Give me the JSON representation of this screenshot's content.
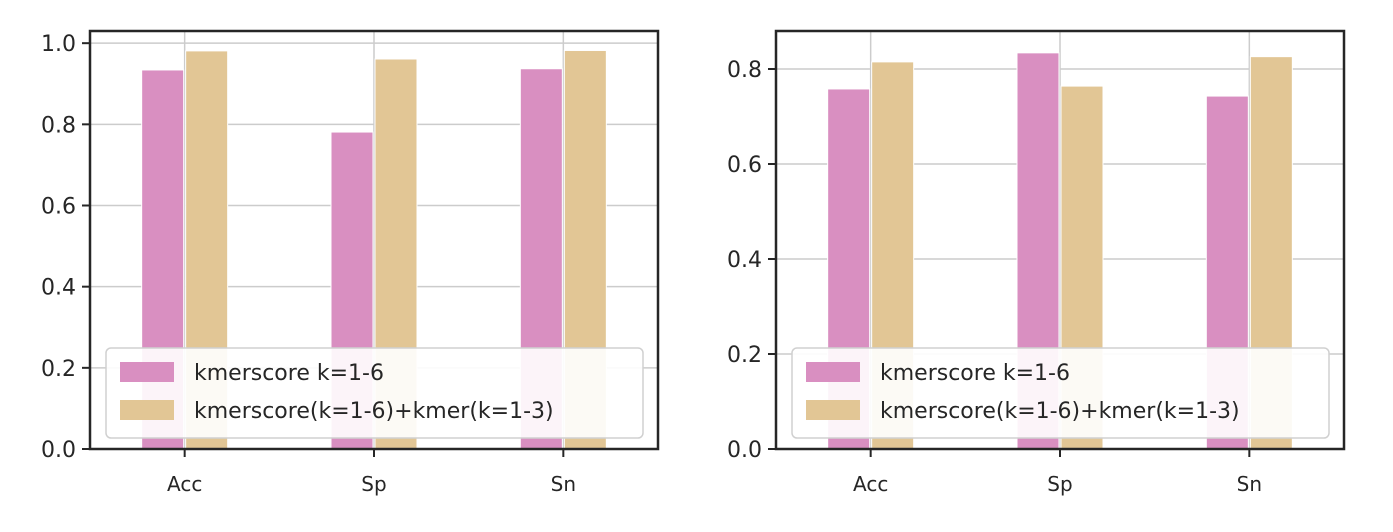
{
  "chart_data": [
    {
      "type": "bar",
      "title": "",
      "xlabel": "",
      "ylabel": "",
      "categories": [
        "Acc",
        "Sp",
        "Sn"
      ],
      "series": [
        {
          "name": "kmerscore k=1-6",
          "values": [
            0.934,
            0.781,
            0.937
          ],
          "color": "#d98fc1"
        },
        {
          "name": "kmerscore(k=1-6)+kmer(k=1-3)",
          "values": [
            0.981,
            0.961,
            0.982
          ],
          "color": "#e2c695"
        }
      ],
      "ylim": [
        0,
        1.03
      ],
      "yticks": [
        "0.0",
        "0.2",
        "0.4",
        "0.6",
        "0.8",
        "1.0"
      ],
      "ytick_values": [
        0.0,
        0.2,
        0.4,
        0.6,
        0.8,
        1.0
      ],
      "grid": true,
      "legend_position": "lower-left"
    },
    {
      "type": "bar",
      "title": "",
      "xlabel": "",
      "ylabel": "",
      "categories": [
        "Acc",
        "Sp",
        "Sn"
      ],
      "series": [
        {
          "name": "kmerscore k=1-6",
          "values": [
            0.758,
            0.834,
            0.743
          ],
          "color": "#d98fc1"
        },
        {
          "name": "kmerscore(k=1-6)+kmer(k=1-3)",
          "values": [
            0.815,
            0.764,
            0.826
          ],
          "color": "#e2c695"
        }
      ],
      "ylim": [
        0,
        0.88
      ],
      "yticks": [
        "0.0",
        "0.2",
        "0.4",
        "0.6",
        "0.8"
      ],
      "ytick_values": [
        0.0,
        0.2,
        0.4,
        0.6,
        0.8
      ],
      "grid": true,
      "legend_position": "lower-left"
    }
  ]
}
